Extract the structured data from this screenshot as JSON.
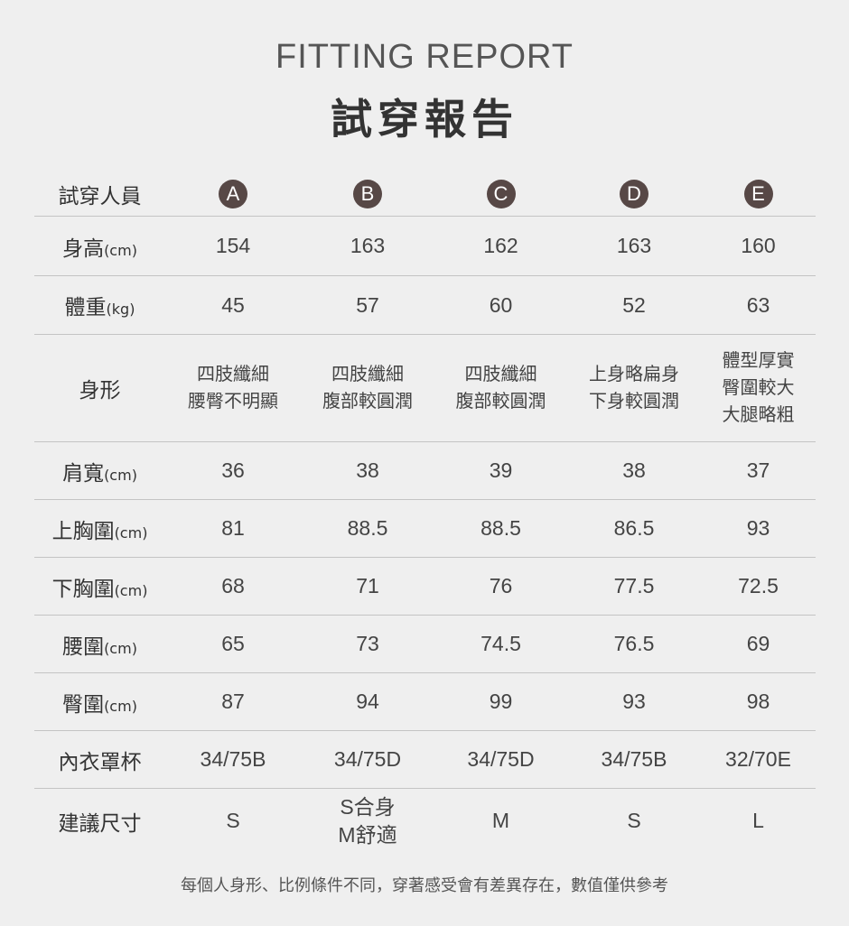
{
  "header": {
    "title_en": "FITTING REPORT",
    "title_zh": "試穿報告"
  },
  "colors": {
    "badge": "#574846",
    "background": "#efefef",
    "divider": "#c4c4c4"
  },
  "table": {
    "header_label": "試穿人員",
    "testers": [
      "A",
      "B",
      "C",
      "D",
      "E"
    ],
    "rows": [
      {
        "label": "身高",
        "unit": "(cm)",
        "values": [
          "154",
          "163",
          "162",
          "163",
          "160"
        ]
      },
      {
        "label": "體重",
        "unit": "(kg)",
        "values": [
          "45",
          "57",
          "60",
          "52",
          "63"
        ]
      },
      {
        "label": "身形",
        "unit": "",
        "values": [
          "四肢纖細\n腰臀不明顯",
          "四肢纖細\n腹部較圓潤",
          "四肢纖細\n腹部較圓潤",
          "上身略扁身\n下身較圓潤",
          "體型厚實\n臀圍較大\n大腿略粗"
        ]
      },
      {
        "label": "肩寬",
        "unit": "(cm)",
        "values": [
          "36",
          "38",
          "39",
          "38",
          "37"
        ]
      },
      {
        "label": "上胸圍",
        "unit": "(cm)",
        "values": [
          "81",
          "88.5",
          "88.5",
          "86.5",
          "93"
        ]
      },
      {
        "label": "下胸圍",
        "unit": "(cm)",
        "values": [
          "68",
          "71",
          "76",
          "77.5",
          "72.5"
        ]
      },
      {
        "label": "腰圍",
        "unit": "(cm)",
        "values": [
          "65",
          "73",
          "74.5",
          "76.5",
          "69"
        ]
      },
      {
        "label": "臀圍",
        "unit": "(cm)",
        "values": [
          "87",
          "94",
          "99",
          "93",
          "98"
        ]
      },
      {
        "label": "內衣罩杯",
        "unit": "",
        "values": [
          "34/75B",
          "34/75D",
          "34/75D",
          "34/75B",
          "32/70E"
        ]
      },
      {
        "label": "建議尺寸",
        "unit": "",
        "values": [
          "S",
          "S合身\nM舒適",
          "M",
          "S",
          "L"
        ]
      }
    ]
  },
  "footer": {
    "note": "每個人身形、比例條件不同，穿著感受會有差異存在，數值僅供參考"
  }
}
